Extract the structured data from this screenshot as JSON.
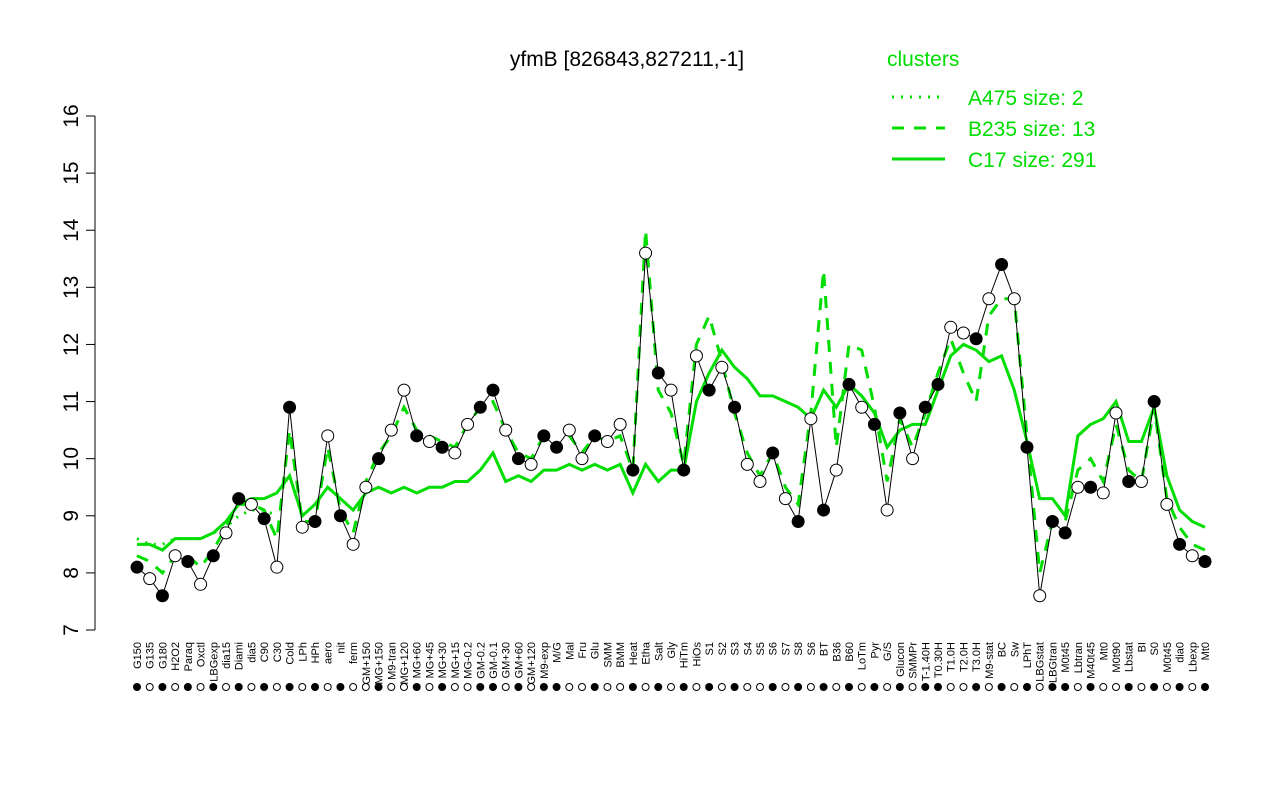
{
  "chart_data": {
    "type": "line",
    "title": "yfmB [826843,827211,-1]",
    "legend_title": "clusters",
    "legend_color": "#00dd00",
    "categories": [
      "G150",
      "G135",
      "G180",
      "H2O2",
      "Paraq",
      "Oxctl",
      "LBGexp",
      "dia15",
      "Diami",
      "dia5",
      "C90",
      "C30",
      "Cold",
      "LPh",
      "HPh",
      "aero",
      "nit",
      "ferm",
      "GM+150",
      "MG+150",
      "M9-tran",
      "MG+120",
      "MG+60",
      "MG+45",
      "MG+30",
      "MG+15",
      "MG-0.2",
      "GM-0.2",
      "GM-0.1",
      "GM+30",
      "GM+60",
      "GM+120",
      "M9-exp",
      "M/G",
      "Mal",
      "Fru",
      "Glu",
      "SMM",
      "BMM",
      "Heat",
      "Etha",
      "Salt",
      "Gly",
      "HiTm",
      "HiOs",
      "S1",
      "S2",
      "S3",
      "S4",
      "S5",
      "S6",
      "S7",
      "S8",
      "S6",
      "BT",
      "B36",
      "B60",
      "LoTm",
      "Pyr",
      "G/S",
      "Glucon",
      "SMMPr",
      "T-1.40H",
      "T0.30H",
      "T1.0H",
      "T2.0H",
      "T3.0H",
      "M9-stat",
      "BC",
      "Sw",
      "LPhT",
      "LBGstat",
      "LBGtran",
      "M0t45",
      "Lbtran",
      "M40t45",
      "Mt0",
      "M0t90",
      "Lbstat",
      "BI",
      "S0",
      "M0t45",
      "dia0",
      "Lbexp",
      "Mt0"
    ],
    "values": [
      8.1,
      7.9,
      7.6,
      8.3,
      8.2,
      7.8,
      8.3,
      8.7,
      9.3,
      9.2,
      8.95,
      8.1,
      10.9,
      8.8,
      8.9,
      10.4,
      9.0,
      8.5,
      9.5,
      10.0,
      10.5,
      11.2,
      10.4,
      10.3,
      10.2,
      10.1,
      10.6,
      10.9,
      11.2,
      10.5,
      10.0,
      9.9,
      10.4,
      10.2,
      10.5,
      10.0,
      10.4,
      10.3,
      10.6,
      9.8,
      13.6,
      11.5,
      11.2,
      9.8,
      11.8,
      11.2,
      11.6,
      10.9,
      9.9,
      9.6,
      10.1,
      9.3,
      8.9,
      10.7,
      9.1,
      9.8,
      11.3,
      10.9,
      10.6,
      9.1,
      10.8,
      10.0,
      10.9,
      11.3,
      12.3,
      12.2,
      12.1,
      12.8,
      13.4,
      12.8,
      10.2,
      7.6,
      8.9,
      8.7,
      9.5,
      9.5,
      9.4,
      10.8,
      9.6,
      9.6,
      11.0,
      9.2,
      8.5,
      8.3,
      8.2
    ],
    "filled": [
      true,
      false,
      true,
      false,
      true,
      false,
      true,
      false,
      true,
      false,
      true,
      false,
      true,
      false,
      true,
      false,
      true,
      false,
      false,
      true,
      false,
      false,
      true,
      false,
      true,
      false,
      false,
      true,
      true,
      false,
      true,
      false,
      true,
      true,
      false,
      false,
      true,
      false,
      false,
      true,
      false,
      true,
      false,
      true,
      false,
      true,
      false,
      true,
      false,
      false,
      true,
      false,
      true,
      false,
      true,
      false,
      true,
      false,
      true,
      false,
      true,
      false,
      true,
      true,
      false,
      false,
      true,
      false,
      true,
      false,
      true,
      false,
      true,
      true,
      false,
      true,
      false,
      false,
      true,
      false,
      true,
      false,
      true,
      false,
      true
    ],
    "line_color": "#000000",
    "series": [
      {
        "name": "A475 size: 2",
        "color": "#00dd00",
        "dash": "dotted",
        "values": [
          8.6,
          8.5,
          8.5,
          8.6,
          8.6,
          8.6,
          8.7,
          8.8,
          9.0,
          9.1,
          9.1,
          9.0,
          null,
          null,
          null,
          null,
          null,
          null,
          null,
          null,
          null,
          null,
          null,
          null,
          null,
          null,
          null,
          null,
          null,
          null,
          null,
          null,
          null,
          null,
          null,
          null,
          null,
          null,
          null,
          null,
          null,
          null,
          null,
          null,
          null,
          null,
          null,
          null,
          null,
          null,
          null,
          null,
          null,
          null,
          null,
          null,
          null,
          null,
          null,
          null,
          null,
          null,
          null,
          null,
          null,
          null,
          null,
          null,
          null,
          null,
          null,
          null,
          null,
          null,
          null,
          null,
          null,
          null,
          null,
          null,
          null,
          null,
          null,
          null,
          null
        ]
      },
      {
        "name": "B235 size: 13",
        "color": "#00dd00",
        "dash": "dashed",
        "values": [
          8.3,
          8.2,
          8.0,
          8.3,
          8.3,
          8.1,
          8.4,
          8.8,
          9.2,
          9.2,
          9.1,
          8.6,
          10.5,
          8.9,
          8.9,
          10.2,
          9.1,
          8.7,
          9.6,
          10.1,
          10.4,
          10.9,
          10.5,
          10.4,
          10.3,
          10.2,
          10.6,
          10.9,
          11.0,
          10.5,
          10.1,
          10.0,
          10.4,
          10.2,
          10.4,
          10.1,
          10.4,
          10.3,
          10.4,
          9.8,
          14.0,
          11.2,
          10.8,
          9.9,
          12.0,
          12.5,
          11.7,
          10.8,
          10.1,
          9.7,
          10.1,
          9.5,
          9.2,
          10.8,
          13.3,
          10.2,
          12.0,
          11.9,
          10.9,
          9.6,
          10.7,
          10.2,
          10.8,
          11.5,
          12.1,
          11.5,
          11.0,
          12.5,
          12.8,
          12.8,
          10.4,
          8.0,
          8.9,
          8.9,
          9.8,
          10.0,
          9.6,
          10.6,
          9.8,
          9.6,
          10.9,
          9.3,
          8.8,
          8.5,
          8.4
        ]
      },
      {
        "name": "C17 size: 291",
        "color": "#00dd00",
        "dash": "solid",
        "values": [
          8.5,
          8.5,
          8.4,
          8.6,
          8.6,
          8.6,
          8.7,
          8.9,
          9.2,
          9.3,
          9.3,
          9.4,
          9.7,
          9.0,
          9.2,
          9.5,
          9.3,
          9.1,
          9.4,
          9.5,
          9.4,
          9.5,
          9.4,
          9.5,
          9.5,
          9.6,
          9.6,
          9.8,
          10.1,
          9.6,
          9.7,
          9.6,
          9.8,
          9.8,
          9.9,
          9.8,
          9.9,
          9.8,
          9.9,
          9.4,
          9.9,
          9.6,
          9.8,
          9.8,
          11.0,
          11.5,
          11.9,
          11.6,
          11.4,
          11.1,
          11.1,
          11.0,
          10.9,
          10.7,
          11.2,
          10.9,
          11.3,
          11.1,
          10.8,
          10.2,
          10.5,
          10.6,
          10.6,
          11.2,
          11.8,
          12.0,
          11.9,
          11.7,
          11.8,
          11.2,
          10.3,
          9.3,
          9.3,
          9.0,
          10.4,
          10.6,
          10.7,
          11.0,
          10.3,
          10.3,
          10.9,
          9.7,
          9.1,
          8.9,
          8.8
        ]
      }
    ],
    "ylim": [
      7,
      16
    ],
    "yticks": [
      7,
      8,
      9,
      10,
      11,
      12,
      13,
      14,
      15,
      16
    ]
  }
}
